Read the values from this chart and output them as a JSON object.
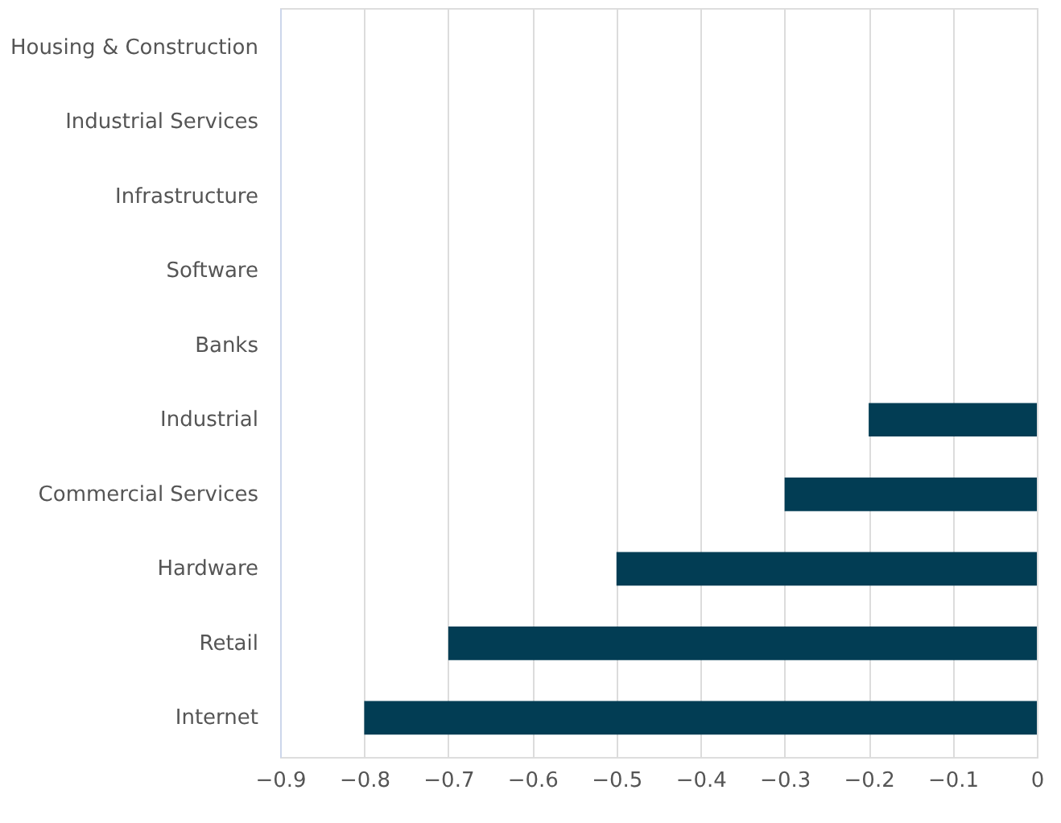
{
  "chart_data": {
    "type": "bar",
    "orientation": "horizontal",
    "categories": [
      "Housing & Construction",
      "Industrial Services",
      "Infrastructure",
      "Software",
      "Banks",
      "Industrial",
      "Commercial Services",
      "Hardware",
      "Retail",
      "Internet"
    ],
    "values": [
      null,
      null,
      null,
      null,
      null,
      -0.2,
      -0.3,
      -0.5,
      -0.7,
      -0.8
    ],
    "color": "#023d54",
    "xlim": [
      -0.9,
      0
    ],
    "xticks": [
      -0.9,
      -0.8,
      -0.7,
      -0.6,
      -0.5,
      -0.4,
      -0.3,
      -0.2,
      -0.1,
      0
    ],
    "grid": "x"
  }
}
